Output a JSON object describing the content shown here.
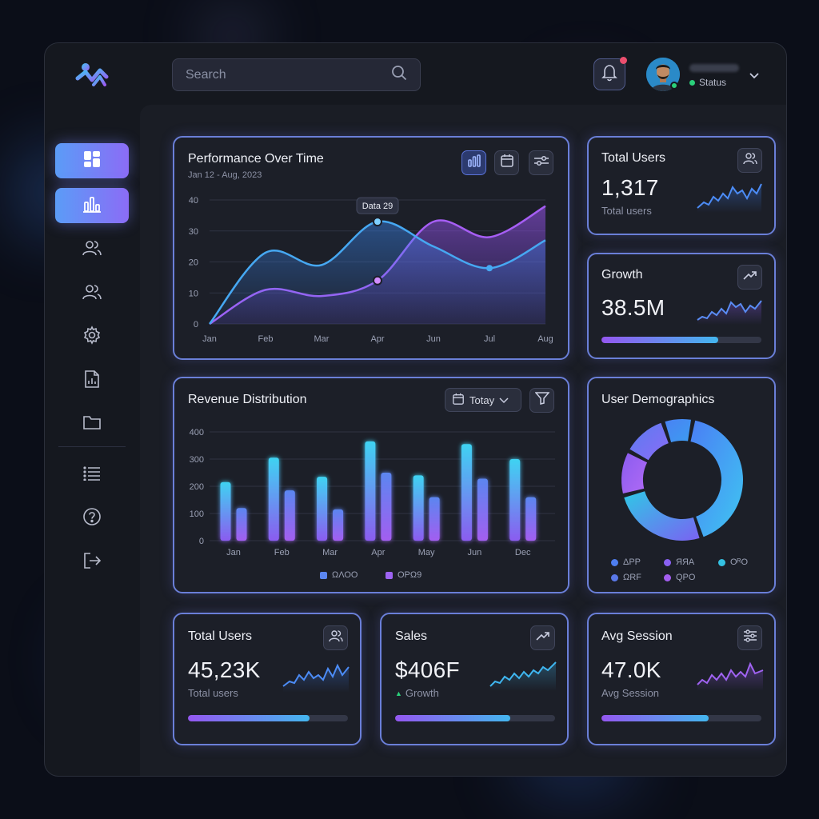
{
  "colors": {
    "accent_blue": "#5b9cf7",
    "accent_purple": "#8b6cf6",
    "accent_cyan": "#43b6ee",
    "status_online": "#2ad07a",
    "notification": "#ec4f6e"
  },
  "header": {
    "search_placeholder": "Search",
    "status_label": "Status"
  },
  "sidebar": {
    "items": [
      {
        "icon": "dashboard-icon",
        "active": true
      },
      {
        "icon": "bar-chart-icon",
        "active": true
      },
      {
        "icon": "users-icon",
        "active": false
      },
      {
        "icon": "users-icon",
        "active": false
      },
      {
        "icon": "gear-icon",
        "active": false
      },
      {
        "icon": "report-icon",
        "active": false
      },
      {
        "icon": "folder-icon",
        "active": false
      },
      {
        "icon": "list-icon",
        "active": false
      },
      {
        "icon": "help-icon",
        "active": false
      },
      {
        "icon": "logout-icon",
        "active": false
      }
    ]
  },
  "performance": {
    "title": "Performance Over Time",
    "subtitle": "Jan 12 - Aug, 2023",
    "tooltip": "Data 29"
  },
  "total_users_top": {
    "title": "Total Users",
    "value": "1,317",
    "label": "Total users"
  },
  "growth": {
    "title": "Growth",
    "value": "38.5M",
    "progress": 0.73
  },
  "revenue": {
    "title": "Revenue Distribution",
    "dropdown": "Totay",
    "legend": [
      "ΩΛΟΟ",
      "ΟΡΩ9"
    ]
  },
  "demographics": {
    "title": "User Demographics",
    "legend": [
      "ΔPP",
      "ЯЯA",
      "OᴿO",
      "ΩRF",
      "QPO"
    ]
  },
  "total_users_bottom": {
    "title": "Total Users",
    "value": "45,23K",
    "label": "Total users",
    "progress": 0.76
  },
  "sales": {
    "title": "Sales",
    "value": "$406F",
    "label": "Growth",
    "progress": 0.72
  },
  "avg_session": {
    "title": "Avg Session",
    "value": "47.0K",
    "label": "Avg Session",
    "progress": 0.67
  },
  "chart_data": [
    {
      "type": "area",
      "title": "Performance Over Time",
      "categories": [
        "Jan",
        "Feb",
        "Mar",
        "Apr",
        "Jun",
        "Jul",
        "Aug"
      ],
      "series": [
        {
          "values": [
            0,
            23,
            19,
            33,
            25,
            18,
            27
          ]
        },
        {
          "values": [
            0,
            11,
            9,
            14,
            33,
            28,
            38
          ]
        }
      ],
      "ylim": [
        0,
        40
      ],
      "yticks": [
        0,
        10,
        20,
        30,
        40
      ],
      "grid": true
    },
    {
      "type": "bar",
      "title": "Revenue Distribution",
      "categories": [
        "Jan",
        "Feb",
        "Mar",
        "Apr",
        "May",
        "Jun",
        "Dec"
      ],
      "series": [
        {
          "name": "ΩΛΟΟ",
          "values": [
            215,
            305,
            235,
            365,
            240,
            355,
            300
          ]
        },
        {
          "name": "ΟΡΩ9",
          "values": [
            120,
            185,
            115,
            250,
            160,
            228,
            160
          ]
        }
      ],
      "ylim": [
        0,
        400
      ],
      "yticks": [
        0,
        100,
        200,
        300,
        400
      ],
      "grid": true
    },
    {
      "type": "pie",
      "title": "User Demographics",
      "categories": [
        "ΔPP",
        "ЯЯA",
        "OᴿO",
        "ΩRF",
        "QPO"
      ],
      "values": [
        42,
        26,
        12,
        12,
        8
      ]
    }
  ]
}
